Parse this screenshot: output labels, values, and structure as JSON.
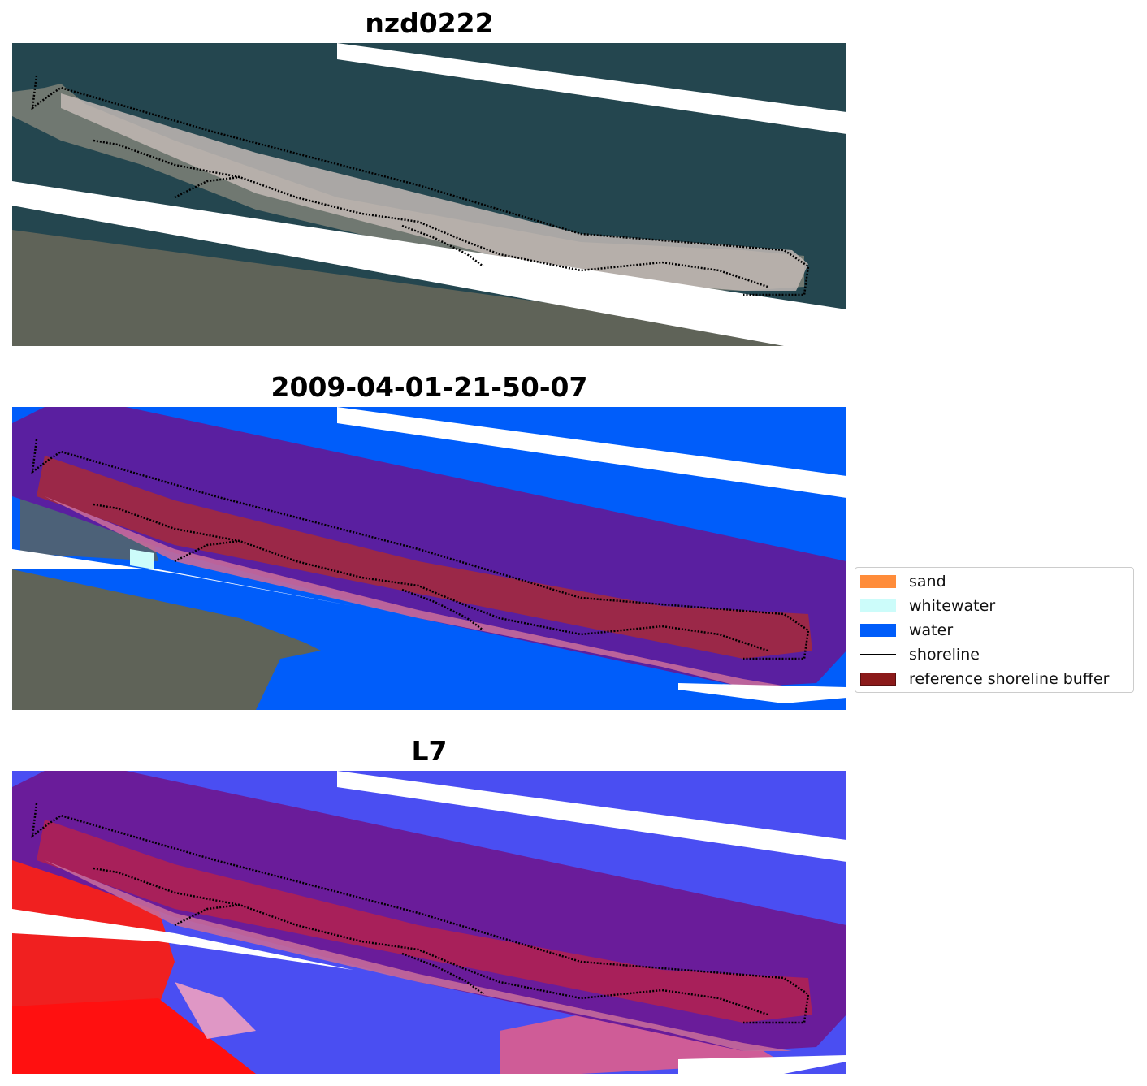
{
  "panels": [
    {
      "title": "nzd0222",
      "kind": "rgb"
    },
    {
      "title": "2009-04-01-21-50-07",
      "kind": "classified"
    },
    {
      "title": "L7",
      "kind": "index"
    }
  ],
  "legend": {
    "items": [
      {
        "label": "sand",
        "color": "#ff8c3a"
      },
      {
        "label": "whitewater",
        "color": "#ccfcfa"
      },
      {
        "label": "water",
        "color": "#005dfa"
      },
      {
        "label": "shoreline",
        "color": "#000000"
      },
      {
        "label": "reference shoreline buffer",
        "color": "#8b1a1a"
      }
    ]
  },
  "colors": {
    "sea_dark": "#24464f",
    "land": "#5f6358",
    "sand_beach": "#c2b8b4",
    "buffer_purple": "#5a1fa0",
    "buffer_red": "#9b2848",
    "buffer_pink": "#c56a9a",
    "water_blue": "#005dfa",
    "index_blue": "#4a4ef2",
    "index_red": "#f02020"
  }
}
